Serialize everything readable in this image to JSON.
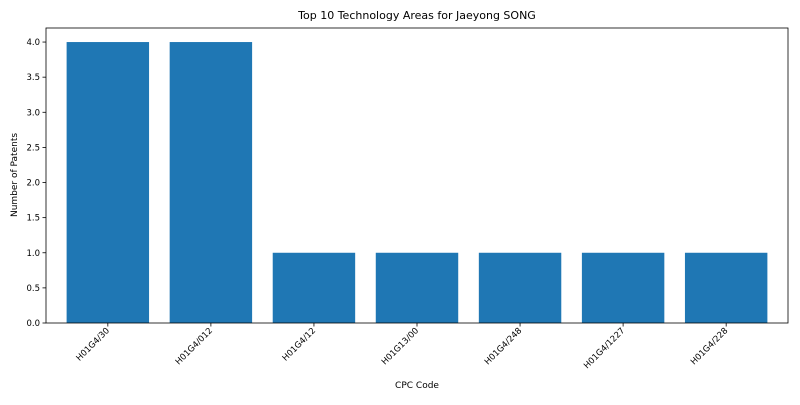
{
  "chart_data": {
    "type": "bar",
    "title": "Top 10 Technology Areas for Jaeyong SONG",
    "xlabel": "CPC Code",
    "ylabel": "Number of Patents",
    "categories": [
      "H01G4/30",
      "H01G4/012",
      "H01G4/12",
      "H01G13/00",
      "H01G4/248",
      "H01G4/1227",
      "H01G4/228"
    ],
    "values": [
      4,
      4,
      1,
      1,
      1,
      1,
      1
    ],
    "ylim": [
      0,
      4.2
    ],
    "yticks": [
      "0.0",
      "0.5",
      "1.0",
      "1.5",
      "2.0",
      "2.5",
      "3.0",
      "3.5",
      "4.0"
    ],
    "grid": false,
    "bar_color": "#1f77b4"
  }
}
